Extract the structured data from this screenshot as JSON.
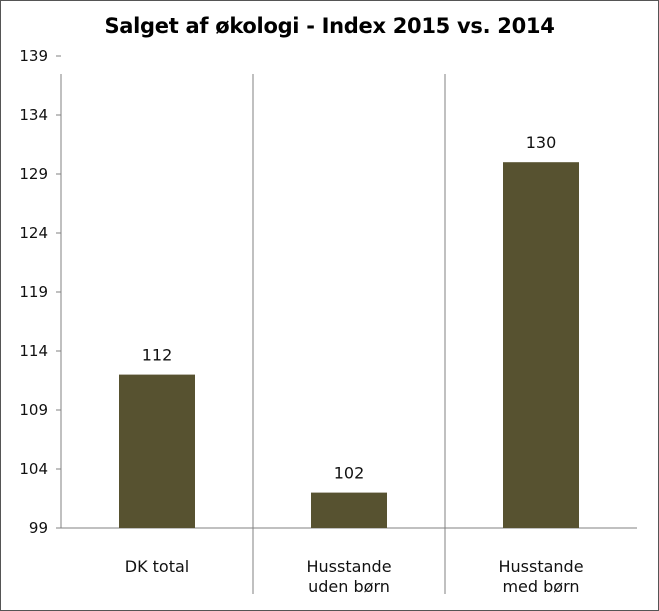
{
  "chart_data": {
    "type": "bar",
    "title": "Salget af økologi - Index 2015 vs. 2014",
    "xlabel": "",
    "ylabel": "",
    "categories": [
      [
        "DK total"
      ],
      [
        "Husstande",
        "uden børn"
      ],
      [
        "Husstande",
        "med børn"
      ]
    ],
    "values": [
      112,
      102,
      130
    ],
    "data_labels": [
      "112",
      "102",
      "130"
    ],
    "ylim": [
      99,
      139
    ],
    "yticks": [
      99,
      104,
      109,
      114,
      119,
      124,
      129,
      134,
      139
    ],
    "grid": false,
    "legend": "none",
    "colors": {
      "bar": "#575230",
      "axis": "#808080",
      "border": "#555555"
    }
  }
}
